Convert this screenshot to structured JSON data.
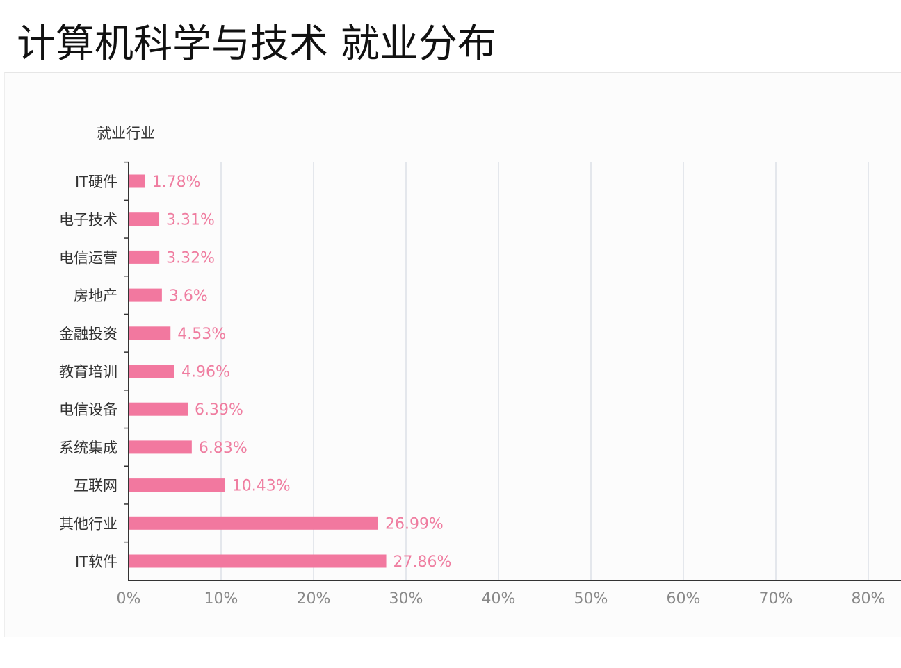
{
  "page": {
    "title": "计算机科学与技术 就业分布"
  },
  "chart_data": {
    "type": "bar",
    "orientation": "horizontal",
    "title": "",
    "ylabel": "就业行业",
    "xlabel": "",
    "xlim": [
      0,
      80
    ],
    "x_ticks": [
      "0%",
      "10%",
      "20%",
      "30%",
      "40%",
      "50%",
      "60%",
      "70%",
      "80%"
    ],
    "categories": [
      "IT硬件",
      "电子技术",
      "电信运营",
      "房地产",
      "金融投资",
      "教育培训",
      "电信设备",
      "系统集成",
      "互联网",
      "其他行业",
      "IT软件"
    ],
    "values": [
      1.78,
      3.31,
      3.32,
      3.6,
      4.53,
      4.96,
      6.39,
      6.83,
      10.43,
      26.99,
      27.86
    ],
    "data_labels": [
      "1.78%",
      "3.31%",
      "3.32%",
      "3.6%",
      "4.53%",
      "4.96%",
      "6.39%",
      "6.83%",
      "10.43%",
      "26.99%",
      "27.86%"
    ],
    "grid": "vertical",
    "legend": "none",
    "colors": {
      "bar": "#f2789f",
      "data_label": "#ef7da0",
      "grid": "#cdd2dc",
      "axis": "#333333",
      "tick_label": "#888888",
      "category_label": "#333333"
    }
  }
}
